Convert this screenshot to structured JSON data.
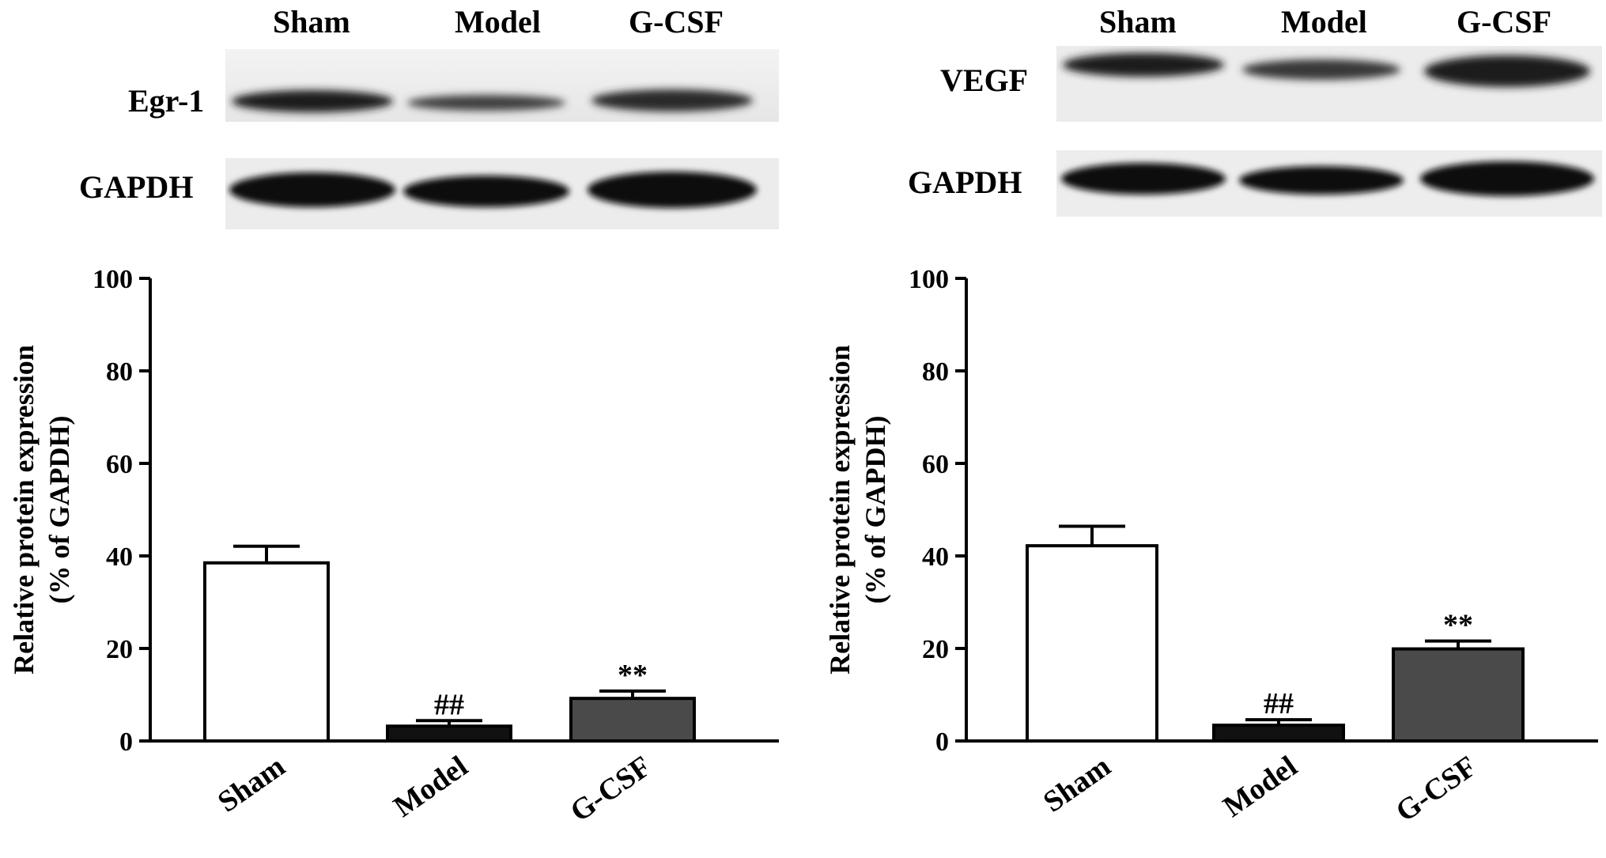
{
  "panels": [
    {
      "lanes": [
        "Sham",
        "Model",
        "G-CSF"
      ],
      "target_label": "Egr-1",
      "control_label": "GAPDH"
    },
    {
      "lanes": [
        "Sham",
        "Model",
        "G-CSF"
      ],
      "target_label": "VEGF",
      "control_label": "GAPDH"
    }
  ],
  "chart_data": [
    {
      "type": "bar",
      "categories": [
        "Sham",
        "Model",
        "G-CSF"
      ],
      "values": [
        38.5,
        3.2,
        9.2
      ],
      "errors": [
        3.6,
        1.2,
        1.6
      ],
      "annotations": [
        "",
        "##",
        "**"
      ],
      "bar_colors": [
        "#ffffff",
        "#111111",
        "#4a4a4a"
      ],
      "ylabel": "Relative protein expression",
      "ylabel2": "(% of GAPDH)",
      "ylim": [
        0,
        100
      ],
      "yticks": [
        "0",
        "20",
        "40",
        "60",
        "80",
        "100"
      ]
    },
    {
      "type": "bar",
      "categories": [
        "Sham",
        "Model",
        "G-CSF"
      ],
      "values": [
        42.2,
        3.4,
        19.9
      ],
      "errors": [
        4.2,
        1.2,
        1.7
      ],
      "annotations": [
        "",
        "##",
        "**"
      ],
      "bar_colors": [
        "#ffffff",
        "#111111",
        "#4a4a4a"
      ],
      "ylabel": "Relative protein expression",
      "ylabel2": "(% of GAPDH)",
      "ylim": [
        0,
        100
      ],
      "yticks": [
        "0",
        "20",
        "40",
        "60",
        "80",
        "100"
      ]
    }
  ]
}
